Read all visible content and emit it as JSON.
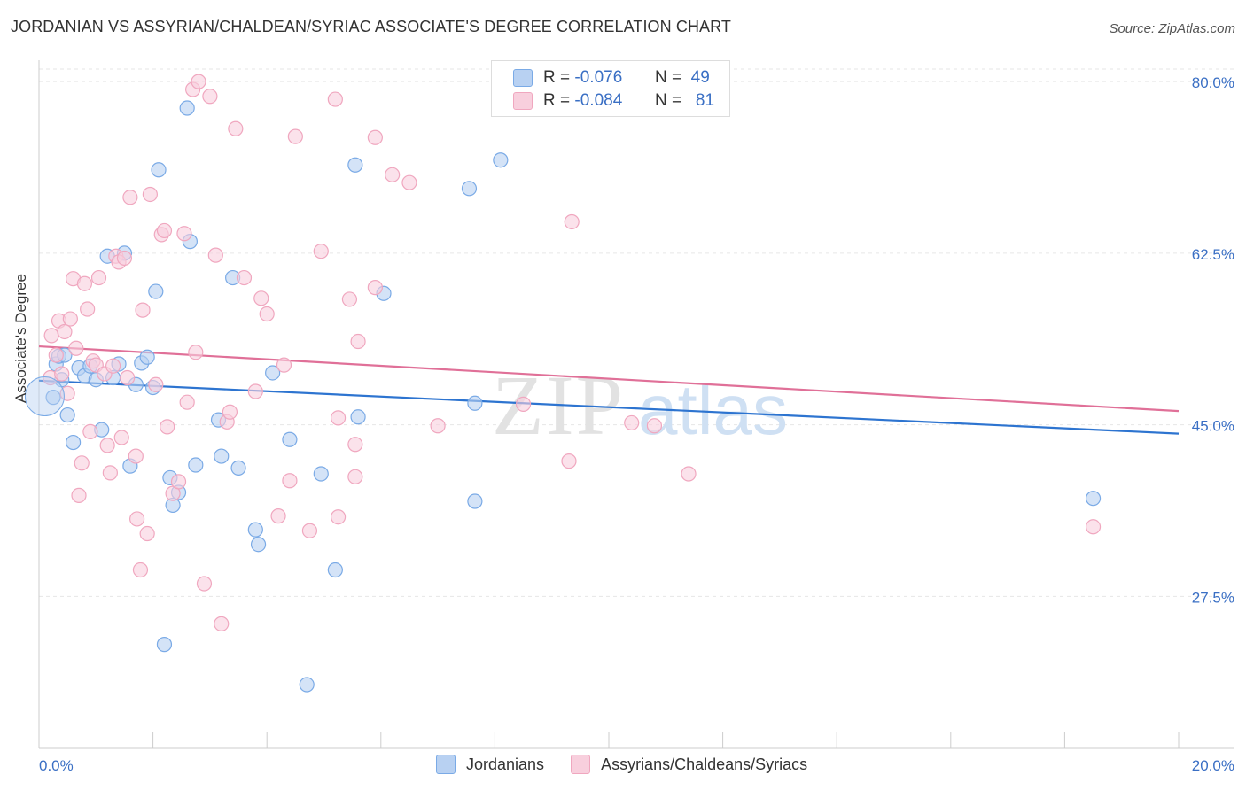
{
  "title": "JORDANIAN VS ASSYRIAN/CHALDEAN/SYRIAC ASSOCIATE'S DEGREE CORRELATION CHART",
  "source": "Source: ZipAtlas.com",
  "watermark_zip": "ZIP",
  "watermark_atlas": "atlas",
  "legend_box": {
    "rows": [
      {
        "r_label": "R =",
        "r_value": "-0.076",
        "n_label": "N =",
        "n_value": "49"
      },
      {
        "r_label": "R =",
        "r_value": "-0.084",
        "n_label": "N =",
        "n_value": "81"
      }
    ]
  },
  "chart_data": {
    "type": "scatter",
    "title": "JORDANIAN VS ASSYRIAN/CHALDEAN/SYRIAC ASSOCIATE'S DEGREE CORRELATION CHART",
    "xlabel": "",
    "ylabel": "Associate's Degree",
    "xlim": [
      0,
      20
    ],
    "ylim": [
      12,
      82
    ],
    "x_tick_labels": [
      "0.0%",
      "20.0%"
    ],
    "y_ticks": [
      27.5,
      45.0,
      62.5,
      80.0
    ],
    "y_tick_labels": [
      "27.5%",
      "45.0%",
      "62.5%",
      "80.0%"
    ],
    "grid": true,
    "legend_position": "bottom",
    "series": [
      {
        "name": "Jordanians",
        "color": "#7aaae6",
        "fill": "#b8d1f2",
        "trend_color": "#2d74d0",
        "trend": [
          [
            0,
            49.5
          ],
          [
            20,
            44.1
          ]
        ],
        "points": [
          [
            0.25,
            47.8
          ],
          [
            0.3,
            51.2
          ],
          [
            0.35,
            52.0
          ],
          [
            0.4,
            49.6
          ],
          [
            0.45,
            52.1
          ],
          [
            0.5,
            46.0
          ],
          [
            0.6,
            43.2
          ],
          [
            0.7,
            50.8
          ],
          [
            0.8,
            50.0
          ],
          [
            0.9,
            51.0
          ],
          [
            1.0,
            49.6
          ],
          [
            1.1,
            44.5
          ],
          [
            1.2,
            62.2
          ],
          [
            1.3,
            49.8
          ],
          [
            1.4,
            51.2
          ],
          [
            1.5,
            62.5
          ],
          [
            1.6,
            40.8
          ],
          [
            1.7,
            49.1
          ],
          [
            1.8,
            51.3
          ],
          [
            1.9,
            51.9
          ],
          [
            2.0,
            48.8
          ],
          [
            2.05,
            58.6
          ],
          [
            2.1,
            71.0
          ],
          [
            2.2,
            22.6
          ],
          [
            2.3,
            39.6
          ],
          [
            2.35,
            36.8
          ],
          [
            2.45,
            38.1
          ],
          [
            2.6,
            77.3
          ],
          [
            2.65,
            63.7
          ],
          [
            2.75,
            40.9
          ],
          [
            3.15,
            45.5
          ],
          [
            3.2,
            41.8
          ],
          [
            3.4,
            60.0
          ],
          [
            3.5,
            40.6
          ],
          [
            3.8,
            34.3
          ],
          [
            3.85,
            32.8
          ],
          [
            4.1,
            50.3
          ],
          [
            4.4,
            43.5
          ],
          [
            4.7,
            18.5
          ],
          [
            4.95,
            40.0
          ],
          [
            5.2,
            30.2
          ],
          [
            5.55,
            71.5
          ],
          [
            5.6,
            45.8
          ],
          [
            6.05,
            58.4
          ],
          [
            7.65,
            47.2
          ],
          [
            7.65,
            37.2
          ],
          [
            7.55,
            69.1
          ],
          [
            8.1,
            72.0
          ],
          [
            18.5,
            37.5
          ]
        ]
      },
      {
        "name": "Assyrians/Chaldeans/Syriacs",
        "color": "#f0a7bf",
        "fill": "#f8cfdd",
        "trend_color": "#e07098",
        "trend": [
          [
            0,
            53.0
          ],
          [
            20,
            46.4
          ]
        ],
        "points": [
          [
            0.2,
            49.8
          ],
          [
            0.22,
            54.1
          ],
          [
            0.3,
            52.1
          ],
          [
            0.35,
            55.6
          ],
          [
            0.4,
            50.2
          ],
          [
            0.45,
            54.5
          ],
          [
            0.5,
            48.2
          ],
          [
            0.55,
            55.8
          ],
          [
            0.6,
            59.9
          ],
          [
            0.65,
            52.8
          ],
          [
            0.7,
            37.8
          ],
          [
            0.75,
            41.1
          ],
          [
            0.8,
            59.4
          ],
          [
            0.85,
            56.8
          ],
          [
            0.9,
            44.3
          ],
          [
            0.95,
            51.5
          ],
          [
            1.0,
            51.1
          ],
          [
            1.05,
            60.0
          ],
          [
            1.15,
            50.2
          ],
          [
            1.2,
            42.9
          ],
          [
            1.25,
            40.1
          ],
          [
            1.3,
            51.0
          ],
          [
            1.35,
            62.2
          ],
          [
            1.4,
            61.6
          ],
          [
            1.45,
            43.7
          ],
          [
            1.5,
            62.0
          ],
          [
            1.55,
            49.8
          ],
          [
            1.6,
            68.2
          ],
          [
            1.7,
            41.8
          ],
          [
            1.72,
            35.4
          ],
          [
            1.78,
            30.2
          ],
          [
            1.82,
            56.7
          ],
          [
            1.9,
            33.9
          ],
          [
            1.95,
            68.5
          ],
          [
            2.05,
            49.1
          ],
          [
            2.15,
            64.4
          ],
          [
            2.2,
            64.8
          ],
          [
            2.25,
            44.8
          ],
          [
            2.35,
            38.0
          ],
          [
            2.45,
            39.2
          ],
          [
            2.55,
            64.5
          ],
          [
            2.6,
            47.3
          ],
          [
            2.7,
            79.2
          ],
          [
            2.75,
            52.4
          ],
          [
            2.8,
            80.0
          ],
          [
            2.9,
            28.8
          ],
          [
            3.0,
            78.5
          ],
          [
            3.1,
            62.3
          ],
          [
            3.2,
            24.7
          ],
          [
            3.3,
            45.3
          ],
          [
            3.35,
            46.3
          ],
          [
            3.45,
            75.2
          ],
          [
            3.6,
            60.0
          ],
          [
            3.8,
            48.4
          ],
          [
            3.9,
            57.9
          ],
          [
            4.0,
            56.3
          ],
          [
            4.2,
            35.7
          ],
          [
            4.3,
            51.1
          ],
          [
            4.4,
            39.3
          ],
          [
            4.5,
            74.4
          ],
          [
            4.75,
            34.2
          ],
          [
            4.95,
            62.7
          ],
          [
            5.2,
            78.2
          ],
          [
            5.25,
            45.7
          ],
          [
            5.25,
            35.6
          ],
          [
            5.45,
            57.8
          ],
          [
            5.55,
            43.0
          ],
          [
            5.55,
            39.7
          ],
          [
            5.6,
            53.5
          ],
          [
            5.9,
            74.3
          ],
          [
            5.9,
            59.0
          ],
          [
            6.2,
            70.5
          ],
          [
            6.5,
            69.7
          ],
          [
            7.0,
            44.9
          ],
          [
            8.5,
            47.1
          ],
          [
            9.3,
            41.3
          ],
          [
            9.35,
            65.7
          ],
          [
            10.4,
            45.2
          ],
          [
            10.8,
            44.9
          ],
          [
            11.4,
            40.0
          ],
          [
            18.5,
            34.6
          ]
        ]
      }
    ]
  }
}
